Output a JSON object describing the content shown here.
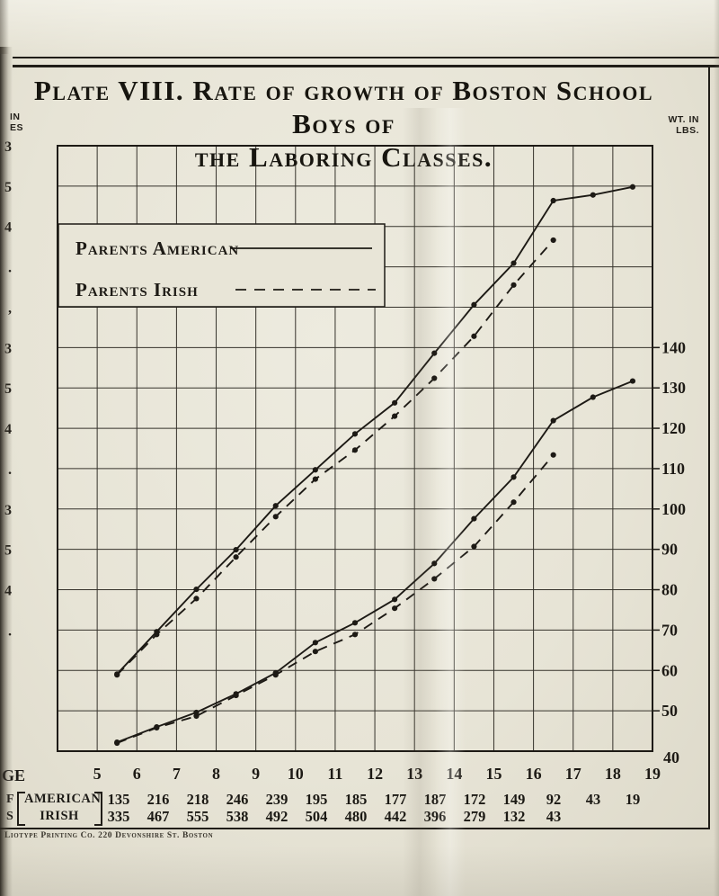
{
  "plate": {
    "title_line1": "Plate VIII. Rate of growth of Boston School Boys of",
    "title_line2": "the Laboring Classes.",
    "left_axis_caption_fragments": [
      "IN",
      "ES"
    ],
    "right_axis_caption": [
      "WT. IN",
      "LBS."
    ],
    "x_axis_caption_fragment": "GE",
    "footer": "Liotype Printing Co. 220 Devonshire St. Boston"
  },
  "legend": {
    "items": [
      {
        "label": "Parents American",
        "style": "solid"
      },
      {
        "label": "Parents Irish",
        "style": "dashed"
      }
    ]
  },
  "chart_data": {
    "type": "line",
    "title": "Plate VIII. Rate of growth of Boston School Boys of the Laboring Classes.",
    "x_ticks": [
      5,
      6,
      7,
      8,
      9,
      10,
      11,
      12,
      13,
      14,
      15,
      16,
      17,
      18,
      19
    ],
    "x_axis_label_fragment": "GE",
    "right_axis": {
      "caption": "WT. IN LBS.",
      "ticks": [
        140,
        130,
        120,
        110,
        100,
        90,
        80,
        70,
        60,
        50,
        40
      ]
    },
    "left_axis": {
      "caption_fragments": [
        "IN",
        "ES"
      ],
      "tick_label_fragments": [
        "3",
        "5",
        "4",
        ".",
        ",",
        "3",
        "5",
        "4",
        ".",
        "3",
        "5",
        "4",
        "."
      ],
      "note": "left-hand scale labels are cropped at the image edge"
    },
    "grid": {
      "columns": 15,
      "rows": 15,
      "visible": true
    },
    "legend_position": "inside top-left box",
    "series": [
      {
        "name": "height-parents-american",
        "legend": "Parents American",
        "measure": "stature (upper curve, left scale cropped)",
        "line_style": "solid",
        "value_scale": "plotted position expressed on right-hand 40-190 grid",
        "points": [
          [
            5.5,
            59.1
          ],
          [
            6.5,
            69.6
          ],
          [
            7.5,
            80.1
          ],
          [
            8.5,
            89.9
          ],
          [
            9.5,
            100.8
          ],
          [
            10.5,
            109.7
          ],
          [
            11.5,
            118.6
          ],
          [
            12.5,
            126.3
          ],
          [
            13.5,
            138.6
          ],
          [
            14.5,
            150.6
          ],
          [
            15.5,
            160.9
          ],
          [
            16.5,
            176.4
          ],
          [
            17.5,
            177.8
          ],
          [
            18.5,
            179.8
          ]
        ]
      },
      {
        "name": "height-parents-irish",
        "legend": "Parents Irish",
        "measure": "stature (upper curve, left scale cropped)",
        "line_style": "dashed",
        "value_scale": "plotted position expressed on right-hand 40-190 grid",
        "points": [
          [
            5.5,
            58.9
          ],
          [
            6.5,
            68.9
          ],
          [
            7.5,
            77.8
          ],
          [
            8.5,
            88.1
          ],
          [
            9.5,
            98.1
          ],
          [
            10.5,
            107.4
          ],
          [
            11.5,
            114.6
          ],
          [
            12.5,
            123.0
          ],
          [
            13.5,
            132.4
          ],
          [
            14.5,
            142.8
          ],
          [
            15.5,
            155.5
          ],
          [
            16.5,
            166.6
          ]
        ]
      },
      {
        "name": "weight-parents-american",
        "legend": "Parents American",
        "measure": "weight in lbs (lower curve, right scale)",
        "line_style": "solid",
        "value_scale": "WT. IN LBS.",
        "points": [
          [
            5.5,
            42.2
          ],
          [
            6.5,
            46.0
          ],
          [
            7.5,
            49.6
          ],
          [
            8.5,
            54.2
          ],
          [
            9.5,
            59.4
          ],
          [
            10.5,
            66.9
          ],
          [
            11.5,
            71.8
          ],
          [
            12.5,
            77.6
          ],
          [
            13.5,
            86.5
          ],
          [
            14.5,
            97.6
          ],
          [
            15.5,
            107.9
          ],
          [
            16.5,
            121.9
          ],
          [
            17.5,
            127.7
          ],
          [
            18.5,
            131.7
          ]
        ]
      },
      {
        "name": "weight-parents-irish",
        "legend": "Parents Irish",
        "measure": "weight in lbs (lower curve, right scale)",
        "line_style": "dashed",
        "value_scale": "WT. IN LBS.",
        "points": [
          [
            5.5,
            42.0
          ],
          [
            6.5,
            45.8
          ],
          [
            7.5,
            48.7
          ],
          [
            8.5,
            53.8
          ],
          [
            9.5,
            58.9
          ],
          [
            10.5,
            64.7
          ],
          [
            11.5,
            68.9
          ],
          [
            12.5,
            75.4
          ],
          [
            13.5,
            82.7
          ],
          [
            14.5,
            90.7
          ],
          [
            15.5,
            101.7
          ],
          [
            16.5,
            113.4
          ]
        ]
      }
    ]
  },
  "table": {
    "row_label_fragments": [
      "F",
      "S"
    ],
    "rows": [
      {
        "label": "AMERICAN",
        "values": [
          135,
          216,
          218,
          246,
          239,
          195,
          185,
          177,
          187,
          172,
          149,
          92,
          43,
          19
        ]
      },
      {
        "label": "IRISH",
        "values": [
          335,
          467,
          555,
          538,
          492,
          504,
          480,
          442,
          396,
          279,
          132,
          43
        ]
      }
    ]
  }
}
